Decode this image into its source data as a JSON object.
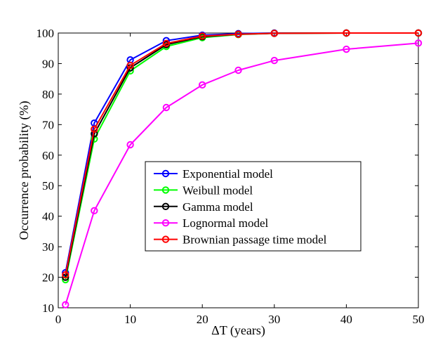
{
  "chart_data": {
    "type": "line",
    "title": "",
    "xlabel": "ΔT (years)",
    "ylabel": "Occurrence probability (%)",
    "xlim": [
      0,
      50
    ],
    "ylim": [
      10,
      100
    ],
    "xticks": [
      0,
      10,
      20,
      30,
      40,
      50
    ],
    "yticks": [
      10,
      20,
      30,
      40,
      50,
      60,
      70,
      80,
      90,
      100
    ],
    "grid": false,
    "legend_position": "center-right",
    "series": [
      {
        "name": "Exponential model",
        "color": "#0000ff",
        "x": [
          1,
          5,
          10,
          15,
          20,
          25,
          30,
          40,
          50
        ],
        "y": [
          21.5,
          70.5,
          91.2,
          97.5,
          99.3,
          99.8,
          100,
          100,
          100
        ]
      },
      {
        "name": "Weibull model",
        "color": "#00ff00",
        "x": [
          1,
          5,
          10,
          15,
          20,
          25,
          30,
          40,
          50
        ],
        "y": [
          19.2,
          65.3,
          87.6,
          95.6,
          98.5,
          99.5,
          99.9,
          100,
          100
        ]
      },
      {
        "name": "Gamma model",
        "color": "#000000",
        "x": [
          1,
          5,
          10,
          15,
          20,
          25,
          30,
          40,
          50
        ],
        "y": [
          20.0,
          67.0,
          88.6,
          96.2,
          98.8,
          99.6,
          99.9,
          100,
          100
        ]
      },
      {
        "name": "Lognormal model",
        "color": "#ff00ff",
        "x": [
          1,
          5,
          10,
          15,
          20,
          25,
          30,
          40,
          50
        ],
        "y": [
          11.0,
          41.8,
          63.4,
          75.6,
          83.0,
          87.8,
          91.0,
          94.7,
          96.7
        ]
      },
      {
        "name": "Brownian passage time model",
        "color": "#ff0000",
        "x": [
          1,
          5,
          10,
          15,
          20,
          25,
          30,
          40,
          50
        ],
        "y": [
          20.8,
          68.5,
          89.4,
          96.6,
          99.0,
          99.6,
          99.9,
          100,
          100
        ]
      }
    ]
  }
}
